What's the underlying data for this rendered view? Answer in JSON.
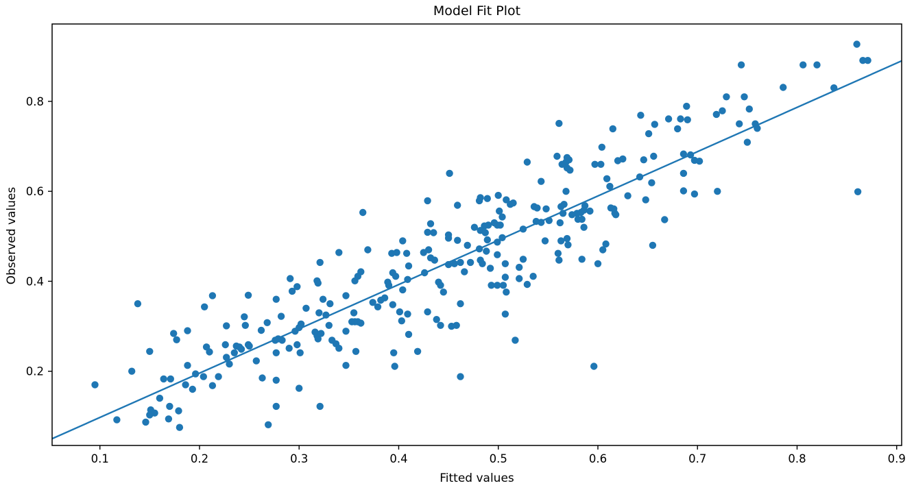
{
  "chart_data": {
    "type": "scatter",
    "title": "Model Fit Plot",
    "xlabel": "Fitted values",
    "ylabel": "Observed values",
    "xlim": [
      0.052,
      0.905
    ],
    "ylim": [
      0.035,
      0.972
    ],
    "xticks": [
      0.1,
      0.2,
      0.3,
      0.4,
      0.5,
      0.6,
      0.7,
      0.8,
      0.9
    ],
    "xtick_labels": [
      "0.1",
      "0.2",
      "0.3",
      "0.4",
      "0.5",
      "0.6",
      "0.7",
      "0.8",
      "0.9"
    ],
    "yticks": [
      0.2,
      0.4,
      0.6,
      0.8
    ],
    "ytick_labels": [
      "0.2",
      "0.4",
      "0.6",
      "0.8"
    ],
    "grid": false,
    "legend": "none",
    "marker_color": "#1f77b4",
    "line_color": "#1f77b4",
    "axis_color": "#000000",
    "fit_line": {
      "x": [
        0.052,
        0.905
      ],
      "y": [
        0.05,
        0.89
      ]
    },
    "series": [
      {
        "name": "observed-vs-fitted-points",
        "points": [
          [
            0.095,
            0.17
          ],
          [
            0.117,
            0.092
          ],
          [
            0.132,
            0.2
          ],
          [
            0.138,
            0.35
          ],
          [
            0.15,
            0.244
          ],
          [
            0.151,
            0.114
          ],
          [
            0.155,
            0.107
          ],
          [
            0.15,
            0.103
          ],
          [
            0.146,
            0.087
          ],
          [
            0.16,
            0.14
          ],
          [
            0.17,
            0.122
          ],
          [
            0.169,
            0.094
          ],
          [
            0.179,
            0.112
          ],
          [
            0.18,
            0.075
          ],
          [
            0.164,
            0.183
          ],
          [
            0.171,
            0.183
          ],
          [
            0.186,
            0.17
          ],
          [
            0.188,
            0.213
          ],
          [
            0.193,
            0.16
          ],
          [
            0.196,
            0.194
          ],
          [
            0.204,
            0.188
          ],
          [
            0.213,
            0.168
          ],
          [
            0.219,
            0.188
          ],
          [
            0.174,
            0.284
          ],
          [
            0.177,
            0.27
          ],
          [
            0.188,
            0.29
          ],
          [
            0.207,
            0.254
          ],
          [
            0.21,
            0.243
          ],
          [
            0.226,
            0.259
          ],
          [
            0.237,
            0.256
          ],
          [
            0.249,
            0.259
          ],
          [
            0.227,
            0.231
          ],
          [
            0.235,
            0.241
          ],
          [
            0.257,
            0.223
          ],
          [
            0.263,
            0.185
          ],
          [
            0.23,
            0.216
          ],
          [
            0.24,
            0.254
          ],
          [
            0.242,
            0.249
          ],
          [
            0.25,
            0.256
          ],
          [
            0.205,
            0.343
          ],
          [
            0.213,
            0.368
          ],
          [
            0.249,
            0.369
          ],
          [
            0.245,
            0.321
          ],
          [
            0.227,
            0.301
          ],
          [
            0.246,
            0.302
          ],
          [
            0.269,
            0.081
          ],
          [
            0.277,
            0.122
          ],
          [
            0.321,
            0.122
          ],
          [
            0.277,
            0.18
          ],
          [
            0.3,
            0.162
          ],
          [
            0.262,
            0.291
          ],
          [
            0.268,
            0.308
          ],
          [
            0.277,
            0.36
          ],
          [
            0.282,
            0.322
          ],
          [
            0.291,
            0.406
          ],
          [
            0.293,
            0.378
          ],
          [
            0.298,
            0.388
          ],
          [
            0.276,
            0.269
          ],
          [
            0.279,
            0.272
          ],
          [
            0.283,
            0.269
          ],
          [
            0.277,
            0.241
          ],
          [
            0.29,
            0.251
          ],
          [
            0.298,
            0.259
          ],
          [
            0.301,
            0.241
          ],
          [
            0.296,
            0.289
          ],
          [
            0.3,
            0.297
          ],
          [
            0.302,
            0.305
          ],
          [
            0.307,
            0.34
          ],
          [
            0.318,
            0.401
          ],
          [
            0.319,
            0.396
          ],
          [
            0.321,
            0.442
          ],
          [
            0.324,
            0.36
          ],
          [
            0.331,
            0.35
          ],
          [
            0.316,
            0.287
          ],
          [
            0.318,
            0.279
          ],
          [
            0.319,
            0.272
          ],
          [
            0.322,
            0.284
          ],
          [
            0.33,
            0.302
          ],
          [
            0.32,
            0.33
          ],
          [
            0.327,
            0.325
          ],
          [
            0.333,
            0.269
          ],
          [
            0.337,
            0.261
          ],
          [
            0.34,
            0.251
          ],
          [
            0.347,
            0.289
          ],
          [
            0.34,
            0.464
          ],
          [
            0.347,
            0.368
          ],
          [
            0.347,
            0.213
          ],
          [
            0.357,
            0.244
          ],
          [
            0.355,
            0.33
          ],
          [
            0.353,
            0.31
          ],
          [
            0.356,
            0.31
          ],
          [
            0.359,
            0.31
          ],
          [
            0.362,
            0.307
          ],
          [
            0.356,
            0.401
          ],
          [
            0.359,
            0.411
          ],
          [
            0.362,
            0.421
          ],
          [
            0.369,
            0.47
          ],
          [
            0.374,
            0.353
          ],
          [
            0.379,
            0.343
          ],
          [
            0.382,
            0.358
          ],
          [
            0.386,
            0.363
          ],
          [
            0.389,
            0.398
          ],
          [
            0.39,
            0.391
          ],
          [
            0.394,
            0.419
          ],
          [
            0.397,
            0.411
          ],
          [
            0.394,
            0.348
          ],
          [
            0.401,
            0.332
          ],
          [
            0.403,
            0.312
          ],
          [
            0.404,
            0.49
          ],
          [
            0.393,
            0.462
          ],
          [
            0.398,
            0.464
          ],
          [
            0.408,
            0.462
          ],
          [
            0.409,
            0.404
          ],
          [
            0.41,
            0.434
          ],
          [
            0.409,
            0.327
          ],
          [
            0.41,
            0.282
          ],
          [
            0.395,
            0.241
          ],
          [
            0.396,
            0.211
          ],
          [
            0.404,
            0.381
          ],
          [
            0.419,
            0.244
          ],
          [
            0.425,
            0.464
          ],
          [
            0.426,
            0.419
          ],
          [
            0.429,
            0.332
          ],
          [
            0.43,
            0.47
          ],
          [
            0.432,
            0.452
          ],
          [
            0.436,
            0.447
          ],
          [
            0.438,
            0.315
          ],
          [
            0.44,
            0.398
          ],
          [
            0.442,
            0.391
          ],
          [
            0.442,
            0.302
          ],
          [
            0.445,
            0.376
          ],
          [
            0.45,
            0.496
          ],
          [
            0.45,
            0.437
          ],
          [
            0.453,
            0.3
          ],
          [
            0.456,
            0.439
          ],
          [
            0.458,
            0.302
          ],
          [
            0.459,
            0.491
          ],
          [
            0.462,
            0.442
          ],
          [
            0.462,
            0.188
          ],
          [
            0.466,
            0.421
          ],
          [
            0.469,
            0.48
          ],
          [
            0.472,
            0.442
          ],
          [
            0.462,
            0.35
          ],
          [
            0.481,
            0.472
          ],
          [
            0.364,
            0.553
          ],
          [
            0.451,
            0.64
          ],
          [
            0.429,
            0.579
          ],
          [
            0.459,
            0.569
          ],
          [
            0.481,
            0.579
          ],
          [
            0.432,
            0.528
          ],
          [
            0.429,
            0.509
          ],
          [
            0.435,
            0.508
          ],
          [
            0.45,
            0.503
          ],
          [
            0.476,
            0.52
          ],
          [
            0.489,
            0.492
          ],
          [
            0.499,
            0.487
          ],
          [
            0.504,
            0.497
          ],
          [
            0.488,
            0.467
          ],
          [
            0.499,
            0.459
          ],
          [
            0.482,
            0.447
          ],
          [
            0.484,
            0.439
          ],
          [
            0.492,
            0.429
          ],
          [
            0.507,
            0.439
          ],
          [
            0.521,
            0.431
          ],
          [
            0.525,
            0.449
          ],
          [
            0.547,
            0.49
          ],
          [
            0.563,
            0.49
          ],
          [
            0.569,
            0.495
          ],
          [
            0.57,
            0.481
          ],
          [
            0.56,
            0.462
          ],
          [
            0.561,
            0.447
          ],
          [
            0.584,
            0.449
          ],
          [
            0.6,
            0.439
          ],
          [
            0.605,
            0.47
          ],
          [
            0.608,
            0.483
          ],
          [
            0.655,
            0.48
          ],
          [
            0.507,
            0.409
          ],
          [
            0.521,
            0.406
          ],
          [
            0.535,
            0.411
          ],
          [
            0.529,
            0.393
          ],
          [
            0.493,
            0.391
          ],
          [
            0.499,
            0.391
          ],
          [
            0.505,
            0.391
          ],
          [
            0.508,
            0.376
          ],
          [
            0.507,
            0.327
          ],
          [
            0.517,
            0.269
          ],
          [
            0.596,
            0.211
          ],
          [
            0.561,
            0.751
          ],
          [
            0.615,
            0.739
          ],
          [
            0.643,
            0.769
          ],
          [
            0.651,
            0.728
          ],
          [
            0.657,
            0.749
          ],
          [
            0.671,
            0.761
          ],
          [
            0.68,
            0.739
          ],
          [
            0.683,
            0.761
          ],
          [
            0.689,
            0.789
          ],
          [
            0.69,
            0.759
          ],
          [
            0.604,
            0.698
          ],
          [
            0.686,
            0.683
          ],
          [
            0.693,
            0.681
          ],
          [
            0.697,
            0.669
          ],
          [
            0.702,
            0.667
          ],
          [
            0.686,
            0.64
          ],
          [
            0.642,
            0.632
          ],
          [
            0.646,
            0.67
          ],
          [
            0.656,
            0.678
          ],
          [
            0.654,
            0.619
          ],
          [
            0.686,
            0.601
          ],
          [
            0.697,
            0.594
          ],
          [
            0.72,
            0.6
          ],
          [
            0.609,
            0.628
          ],
          [
            0.612,
            0.611
          ],
          [
            0.62,
            0.668
          ],
          [
            0.625,
            0.672
          ],
          [
            0.63,
            0.59
          ],
          [
            0.648,
            0.581
          ],
          [
            0.667,
            0.537
          ],
          [
            0.529,
            0.665
          ],
          [
            0.543,
            0.622
          ],
          [
            0.559,
            0.678
          ],
          [
            0.568,
            0.665
          ],
          [
            0.571,
            0.67
          ],
          [
            0.569,
            0.652
          ],
          [
            0.572,
            0.647
          ],
          [
            0.568,
            0.6
          ],
          [
            0.564,
            0.66
          ],
          [
            0.569,
            0.675
          ],
          [
            0.597,
            0.66
          ],
          [
            0.603,
            0.66
          ],
          [
            0.482,
            0.586
          ],
          [
            0.489,
            0.584
          ],
          [
            0.5,
            0.591
          ],
          [
            0.508,
            0.581
          ],
          [
            0.512,
            0.571
          ],
          [
            0.515,
            0.574
          ],
          [
            0.501,
            0.556
          ],
          [
            0.504,
            0.543
          ],
          [
            0.496,
            0.53
          ],
          [
            0.499,
            0.525
          ],
          [
            0.502,
            0.525
          ],
          [
            0.486,
            0.523
          ],
          [
            0.49,
            0.525
          ],
          [
            0.482,
            0.513
          ],
          [
            0.487,
            0.508
          ],
          [
            0.525,
            0.516
          ],
          [
            0.536,
            0.566
          ],
          [
            0.539,
            0.563
          ],
          [
            0.548,
            0.561
          ],
          [
            0.538,
            0.533
          ],
          [
            0.543,
            0.531
          ],
          [
            0.551,
            0.535
          ],
          [
            0.562,
            0.53
          ],
          [
            0.563,
            0.566
          ],
          [
            0.566,
            0.571
          ],
          [
            0.579,
            0.551
          ],
          [
            0.583,
            0.553
          ],
          [
            0.586,
            0.558
          ],
          [
            0.587,
            0.568
          ],
          [
            0.592,
            0.556
          ],
          [
            0.584,
            0.538
          ],
          [
            0.586,
            0.52
          ],
          [
            0.616,
            0.561
          ],
          [
            0.618,
            0.548
          ],
          [
            0.574,
            0.548
          ],
          [
            0.58,
            0.538
          ],
          [
            0.565,
            0.551
          ],
          [
            0.613,
            0.563
          ],
          [
            0.617,
            0.551
          ],
          [
            0.86,
            0.927
          ],
          [
            0.866,
            0.891
          ],
          [
            0.871,
            0.891
          ],
          [
            0.744,
            0.881
          ],
          [
            0.806,
            0.881
          ],
          [
            0.82,
            0.881
          ],
          [
            0.786,
            0.831
          ],
          [
            0.837,
            0.83
          ],
          [
            0.729,
            0.81
          ],
          [
            0.747,
            0.81
          ],
          [
            0.752,
            0.783
          ],
          [
            0.719,
            0.771
          ],
          [
            0.725,
            0.779
          ],
          [
            0.742,
            0.75
          ],
          [
            0.758,
            0.75
          ],
          [
            0.76,
            0.74
          ],
          [
            0.75,
            0.709
          ],
          [
            0.861,
            0.599
          ]
        ]
      }
    ]
  }
}
